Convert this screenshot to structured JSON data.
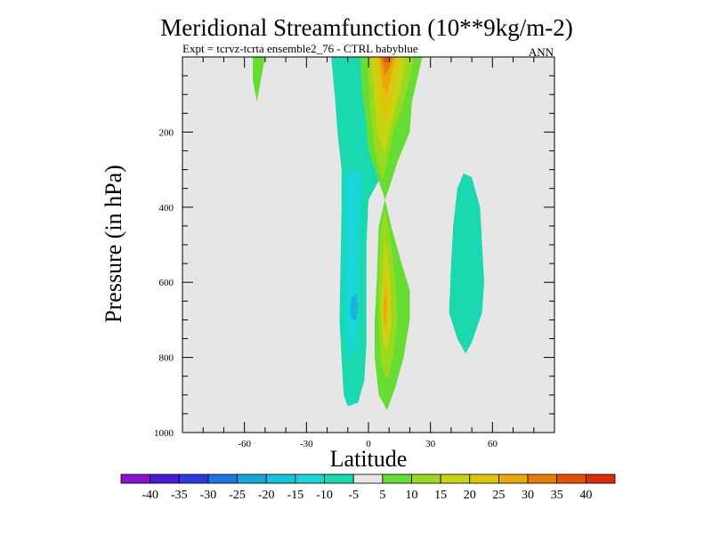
{
  "chart_data": {
    "type": "contour",
    "title": "Meridional Streamfunction (10**9kg/m-2)",
    "subtitle_left": "Expt = tcrvz-tcrta  ensemble2_76 - CTRL babyblue",
    "subtitle_right": "ANN",
    "xlabel": "Latitude",
    "ylabel": "Pressure (in hPa)",
    "xlim": [
      -90,
      90
    ],
    "ylim": [
      1000,
      0
    ],
    "xticks": [
      -60,
      -30,
      0,
      30,
      60
    ],
    "yticks": [
      200,
      400,
      600,
      800,
      1000
    ],
    "background": "#e6e6e6",
    "colorbar": {
      "labels": [
        "-40",
        "-35",
        "-30",
        "-25",
        "-20",
        "-15",
        "-10",
        "-5",
        "5",
        "10",
        "15",
        "20",
        "25",
        "30",
        "35",
        "40"
      ],
      "colors": [
        "#8a12d6",
        "#4b1ad8",
        "#2a3de0",
        "#1a78e0",
        "#14a6dc",
        "#16c2dc",
        "#18d6d8",
        "#1ad8b0",
        "#e6e6e6",
        "#66dd33",
        "#99d91e",
        "#c8d412",
        "#e0c40c",
        "#e8a80a",
        "#e67e08",
        "#e4520a",
        "#dd2c0c"
      ]
    },
    "features": [
      {
        "name": "Streamfunction -10 band south of equator",
        "level": "-10"
      },
      {
        "name": "Streamfunction -15 core near 10S 650hPa",
        "level": "-15"
      },
      {
        "name": "Streamfunction 5 upper-level lobe near 55S",
        "level": "5"
      },
      {
        "name": "Streamfunction positive band near equator",
        "level": "10-30"
      },
      {
        "name": "Streamfunction -10 cell near 45N",
        "level": "-10"
      }
    ]
  }
}
